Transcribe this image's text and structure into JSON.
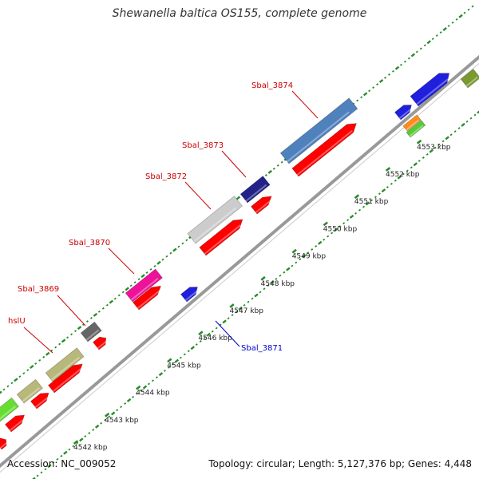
{
  "title": "Shewanella baltica OS155, complete genome",
  "footer": {
    "accession": "Accession: NC_009052",
    "summary": "Topology: circular; Length: 5,127,376 bp; Genes: 4,448"
  },
  "colors": {
    "label_forward": "#cc0000",
    "label_reverse": "#0000cc",
    "backbone": "#999999",
    "tick_dots": "#2a8a2a",
    "cds": "#ff0000"
  },
  "kbp_labels": [
    {
      "text": "4542 kbp",
      "kbp": 4542
    },
    {
      "text": "4543 kbp",
      "kbp": 4543
    },
    {
      "text": "4544 kbp",
      "kbp": 4544
    },
    {
      "text": "4545 kbp",
      "kbp": 4545
    },
    {
      "text": "4546 kbp",
      "kbp": 4546
    },
    {
      "text": "4547 kbp",
      "kbp": 4547
    },
    {
      "text": "4548 kbp",
      "kbp": 4548
    },
    {
      "text": "4549 kbp",
      "kbp": 4549
    },
    {
      "text": "4550 kbp",
      "kbp": 4550
    },
    {
      "text": "4551 kbp",
      "kbp": 4551
    },
    {
      "text": "4552 kbp",
      "kbp": 4552
    },
    {
      "text": "4553 kbp",
      "kbp": 4553
    }
  ],
  "gene_labels": [
    {
      "text": "hslU",
      "strand": "forward"
    },
    {
      "text": "Sbal_3869",
      "strand": "forward"
    },
    {
      "text": "Sbal_3870",
      "strand": "forward"
    },
    {
      "text": "Sbal_3871",
      "strand": "reverse"
    },
    {
      "text": "Sbal_3872",
      "strand": "forward"
    },
    {
      "text": "Sbal_3873",
      "strand": "forward"
    },
    {
      "text": "Sbal_3874",
      "strand": "forward"
    }
  ]
}
